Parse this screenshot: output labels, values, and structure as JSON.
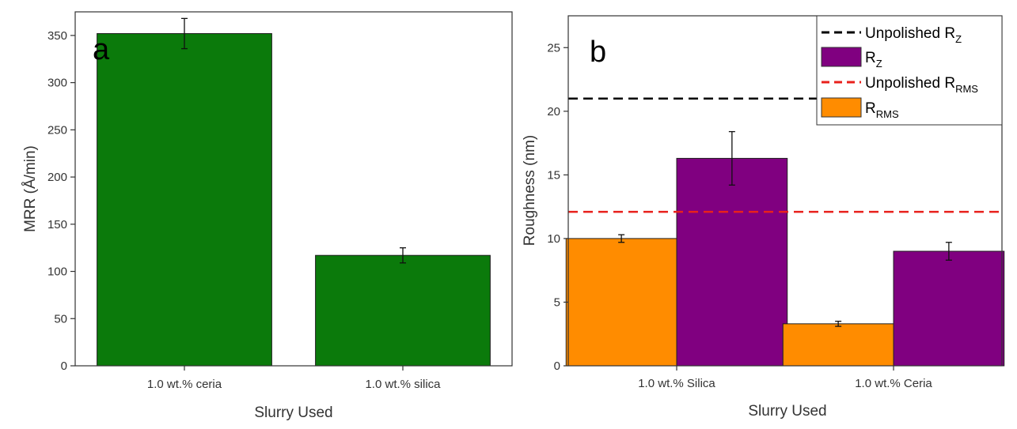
{
  "colors": {
    "green": "#0b7a0b",
    "purple": "#800080",
    "orange": "#ff8c00",
    "black_dash": "#000000",
    "red_dash": "#e8211c"
  },
  "chart_data": [
    {
      "panel": "a",
      "type": "bar",
      "xlabel": "Slurry Used",
      "ylabel": "MRR (Å/min)",
      "ylim": [
        0,
        375
      ],
      "yticks": [
        0,
        50,
        100,
        150,
        200,
        250,
        300,
        350
      ],
      "categories": [
        "1.0 wt.% ceria",
        "1.0 wt.% silica"
      ],
      "values": [
        352,
        117
      ],
      "errors": [
        16,
        8
      ],
      "grid": false
    },
    {
      "panel": "b",
      "type": "bar",
      "xlabel": "Slurry Used",
      "ylabel": "Roughness (nm)",
      "ylim": [
        0,
        27.5
      ],
      "yticks": [
        0,
        5,
        10,
        15,
        20,
        25
      ],
      "categories": [
        "1.0 wt.% Silica",
        "1.0 wt.% Ceria"
      ],
      "series": [
        {
          "name": "R_RMS",
          "label_main": "R",
          "label_sub": "RMS",
          "values": [
            10.0,
            3.3
          ],
          "errors": [
            0.3,
            0.2
          ]
        },
        {
          "name": "R_Z",
          "label_main": "R",
          "label_sub": "Z",
          "values": [
            16.3,
            9.0
          ],
          "errors": [
            2.1,
            0.7
          ]
        }
      ],
      "reference_lines": [
        {
          "name": "Unpolished R_Z",
          "label_main": "Unpolished R",
          "label_sub": "Z",
          "value": 21.0
        },
        {
          "name": "Unpolished R_RMS",
          "label_main": "Unpolished R",
          "label_sub": "RMS",
          "value": 12.1
        }
      ],
      "legend_position": "top-right",
      "grid": false
    }
  ]
}
